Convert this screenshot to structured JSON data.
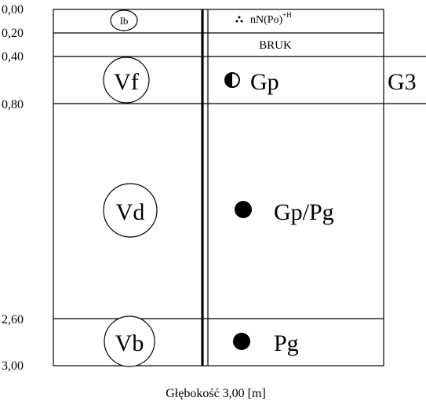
{
  "depth_labels": [
    "0,00",
    "0,20",
    "0,40",
    "0,80",
    "2,60",
    "3,00"
  ],
  "layers": [
    {
      "soil_class": "Ib",
      "lithology": "nN(Po)",
      "lithology_sup": "+H",
      "symbol": "dots"
    },
    {
      "soil_class": "",
      "lithology": "BRUK",
      "lithology_sup": "",
      "symbol": "none"
    },
    {
      "soil_class": "Vf",
      "lithology": "Gp",
      "lithology_sup": "",
      "symbol": "half-filled-circle-icon",
      "side_label": "G3"
    },
    {
      "soil_class": "Vd",
      "lithology": "Gp/Pg",
      "lithology_sup": "",
      "symbol": "filled-circle-icon"
    },
    {
      "soil_class": "Vb",
      "lithology": "Pg",
      "lithology_sup": "",
      "symbol": "filled-circle-icon"
    }
  ],
  "footer": "Głębokość 3,00 [m]"
}
